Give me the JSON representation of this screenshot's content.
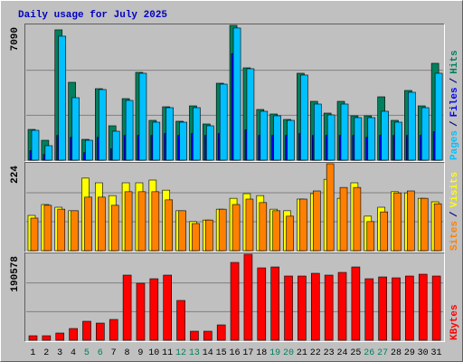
{
  "chart_data": {
    "type": "bar",
    "title": "Daily usage for July 2025",
    "categories": [
      "1",
      "2",
      "3",
      "4",
      "5",
      "6",
      "7",
      "8",
      "9",
      "10",
      "11",
      "12",
      "13",
      "14",
      "15",
      "16",
      "17",
      "18",
      "19",
      "20",
      "21",
      "22",
      "23",
      "24",
      "25",
      "26",
      "27",
      "28",
      "29",
      "30",
      "31"
    ],
    "category_colors": [
      "#000000",
      "#000000",
      "#000000",
      "#000000",
      "#00805c",
      "#00805c",
      "#000000",
      "#000000",
      "#000000",
      "#000000",
      "#000000",
      "#00805c",
      "#00805c",
      "#000000",
      "#000000",
      "#000000",
      "#000000",
      "#000000",
      "#00805c",
      "#00805c",
      "#000000",
      "#000000",
      "#000000",
      "#000000",
      "#000000",
      "#00805c",
      "#00805c",
      "#000000",
      "#000000",
      "#000000",
      "#000000"
    ],
    "legend_separator": "/",
    "grid": true,
    "panels": [
      {
        "ylim": [
          0,
          7090
        ],
        "yticks": [
          7090
        ],
        "series": [
          {
            "name": "Hits",
            "color": "#00805c",
            "values": [
              1618,
              1047,
              6854,
              4094,
              1095,
              3760,
              1809,
              3237,
              4617,
              2094,
              2808,
              2047,
              2856,
              1904,
              4046,
              7090,
              4855,
              2666,
              2428,
              2142,
              4570,
              3094,
              2475,
              3094,
              2332,
              2332,
              3332,
              2094,
              3665,
              2856,
              5093
            ]
          },
          {
            "name": "Files",
            "color": "#0000ff",
            "values": [
              500,
              300,
              1300,
              1200,
              400,
              1200,
              600,
              1300,
              1300,
              1300,
              1400,
              1300,
              1400,
              1300,
              1400,
              5600,
              1600,
              1300,
              1300,
              1300,
              1400,
              1300,
              1300,
              1300,
              1300,
              1200,
              1300,
              1300,
              1300,
              1300,
              1500
            ]
          },
          {
            "name": "Pages",
            "color": "#00c0ff",
            "values": [
              1571,
              762,
              6521,
              3284,
              1047,
              3713,
              1523,
              3142,
              4570,
              1999,
              2761,
              1999,
              2761,
              1809,
              3998,
              6950,
              4808,
              2571,
              2333,
              2094,
              4475,
              2951,
              2380,
              2951,
              2237,
              2237,
              2571,
              1999,
              3570,
              2761,
              4570
            ]
          }
        ]
      },
      {
        "ylim": [
          0,
          224
        ],
        "yticks": [
          224
        ],
        "series": [
          {
            "name": "Visits",
            "color": "#ffff00",
            "values": [
              91,
              119,
              112,
              103,
              187,
              175,
              142,
              175,
              175,
              182,
              156,
              103,
              75,
              79,
              107,
              135,
              147,
              142,
              107,
              103,
              133,
              147,
              184,
              135,
              175,
              89,
              112,
              152,
              149,
              135,
              126
            ]
          },
          {
            "name": "Sites",
            "color": "#ff8000",
            "values": [
              84,
              117,
              107,
              103,
              138,
              138,
              117,
              152,
              152,
              152,
              131,
              103,
              70,
              79,
              107,
              119,
              133,
              124,
              103,
              89,
              133,
              154,
              224,
              163,
              163,
              75,
              100,
              149,
              154,
              135,
              121
            ]
          }
        ]
      },
      {
        "ylim": [
          0,
          190578
        ],
        "yticks": [
          190578
        ],
        "series": [
          {
            "name": "KBytes",
            "color": "#ff0000",
            "values": [
              10030,
              10030,
              16048,
              26078,
              42126,
              38114,
              46138,
              144432,
              126378,
              136408,
              144432,
              88264,
              20060,
              20060,
              34102,
              172516,
              190578,
              160480,
              162486,
              142426,
              142426,
              148444,
              144432,
              150450,
              162486,
              136408,
              140420,
              138414,
              142426,
              146438,
              142426
            ]
          }
        ]
      }
    ]
  }
}
